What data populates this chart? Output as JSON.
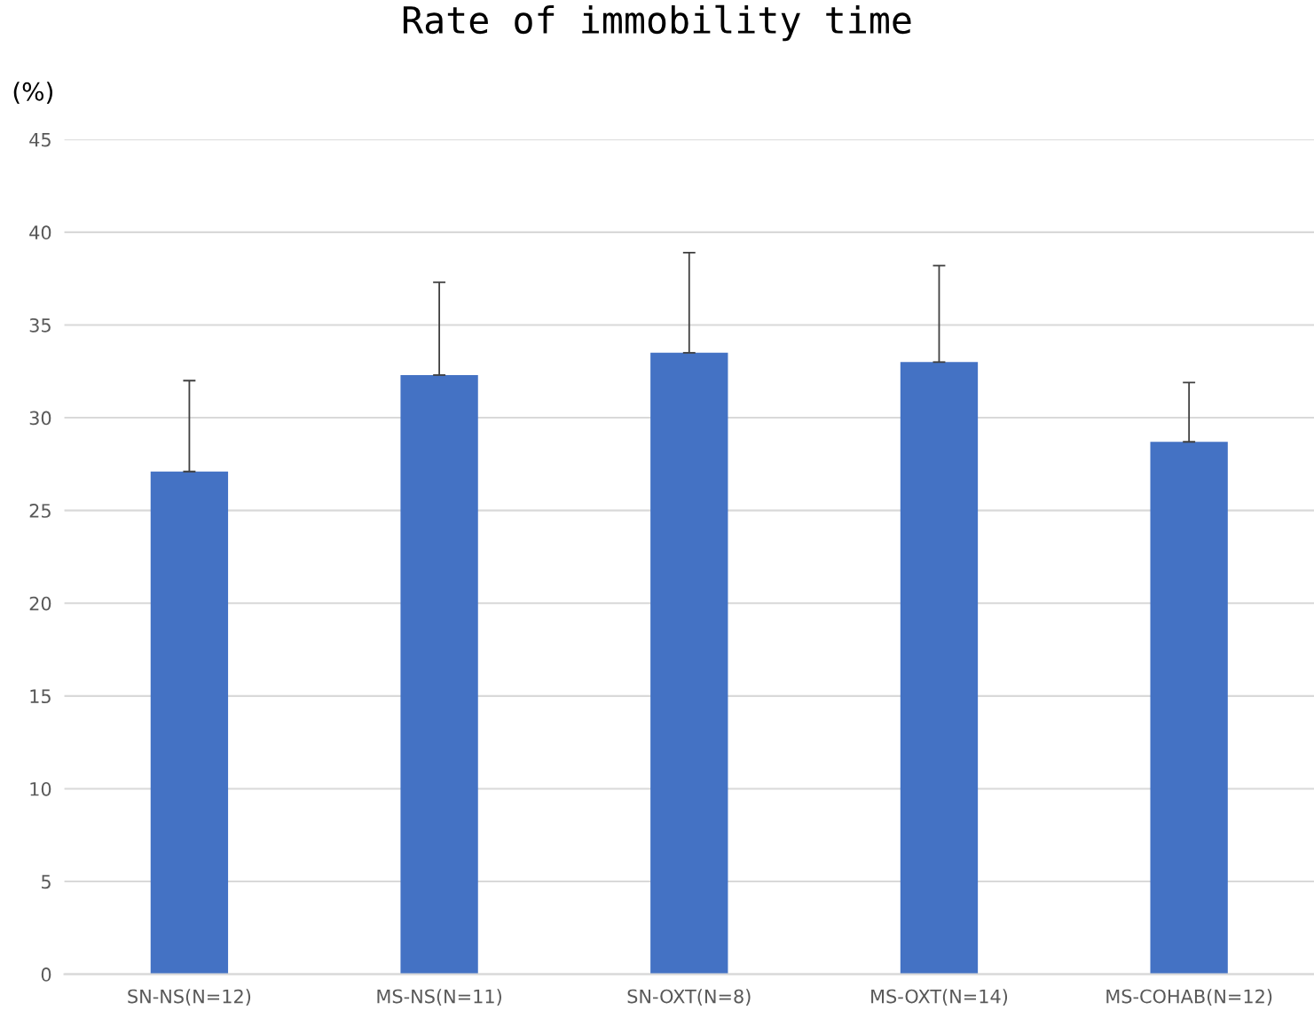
{
  "chart_data": {
    "type": "bar",
    "title": "Rate of immobility time",
    "ylabel": "(%)",
    "categories": [
      "SN-NS(N=12)",
      "MS-NS(N=11)",
      "SN-OXT(N=8)",
      "MS-OXT(N=14)",
      "MS-COHAB(N=12)"
    ],
    "values": [
      27.1,
      32.3,
      33.5,
      33.0,
      28.7
    ],
    "errors": [
      [
        27.1,
        32.0
      ],
      [
        32.3,
        37.3
      ],
      [
        33.5,
        38.9
      ],
      [
        33.0,
        38.2
      ],
      [
        28.7,
        31.9
      ]
    ],
    "color": "#4472c4",
    "ylim": [
      0,
      45
    ],
    "yticks": [
      0,
      5,
      10,
      15,
      20,
      25,
      30,
      35,
      40,
      45
    ],
    "grid": "y",
    "legend": false
  }
}
